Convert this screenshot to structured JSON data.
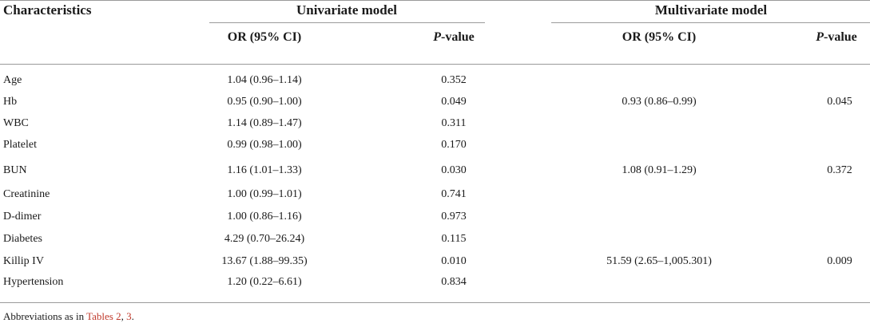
{
  "table": {
    "header": {
      "characteristics": "Characteristics",
      "univariate": "Univariate model",
      "multivariate": "Multivariate model"
    },
    "subheader": {
      "uni_or": "OR (95% CI)",
      "uni_p_italic": "P",
      "uni_p_rest": "-value",
      "multi_or": "OR (95% CI)",
      "multi_p_italic": "P",
      "multi_p_rest": "-value"
    },
    "rows": [
      {
        "name": "Age",
        "uni_or": "1.04 (0.96–1.14)",
        "uni_p": "0.352",
        "multi_or": "",
        "multi_p": ""
      },
      {
        "name": "Hb",
        "uni_or": "0.95 (0.90–1.00)",
        "uni_p": "0.049",
        "multi_or": "0.93 (0.86–0.99)",
        "multi_p": "0.045"
      },
      {
        "name": "WBC",
        "uni_or": "1.14 (0.89–1.47)",
        "uni_p": "0.311",
        "multi_or": "",
        "multi_p": ""
      },
      {
        "name": "Platelet",
        "uni_or": "0.99 (0.98–1.00)",
        "uni_p": "0.170",
        "multi_or": "",
        "multi_p": ""
      },
      {
        "name": "BUN",
        "uni_or": "1.16 (1.01–1.33)",
        "uni_p": "0.030",
        "multi_or": "1.08 (0.91–1.29)",
        "multi_p": "0.372"
      },
      {
        "name": "Creatinine",
        "uni_or": "1.00 (0.99–1.01)",
        "uni_p": "0.741",
        "multi_or": "",
        "multi_p": ""
      },
      {
        "name": "D-dimer",
        "uni_or": "1.00 (0.86–1.16)",
        "uni_p": "0.973",
        "multi_or": "",
        "multi_p": ""
      },
      {
        "name": "Diabetes",
        "uni_or": "4.29 (0.70–26.24)",
        "uni_p": "0.115",
        "multi_or": "",
        "multi_p": ""
      },
      {
        "name": "Killip IV",
        "uni_or": "13.67 (1.88–99.35)",
        "uni_p": "0.010",
        "multi_or": "51.59 (2.65–1,005.301)",
        "multi_p": "0.009"
      },
      {
        "name": "Hypertension",
        "uni_or": "1.20 (0.22–6.61)",
        "uni_p": "0.834",
        "multi_or": "",
        "multi_p": ""
      }
    ]
  },
  "footnote": {
    "prefix": "Abbreviations as in ",
    "link1": "Tables 2",
    "sep": ", ",
    "link2": "3",
    "suffix": "."
  }
}
